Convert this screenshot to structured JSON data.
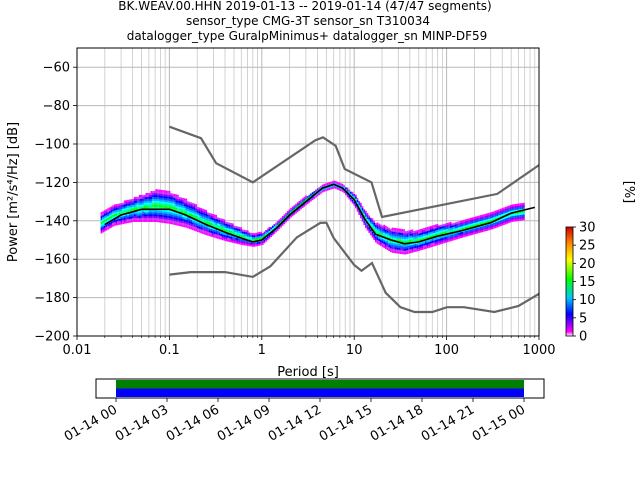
{
  "title_lines": [
    "BK.WEAV.00.HHN   2019-01-13 -- 2019-01-14  (47/47 segments)",
    "sensor_type CMG-3T sensor_sn T310034",
    "datalogger_type GuralpMinimus+ datalogger_sn MINP-DF59"
  ],
  "chart_data": {
    "type": "heatmap",
    "x_scale": "log",
    "xlim": [
      0.01,
      1000
    ],
    "ylim": [
      -200,
      -50
    ],
    "xlabel": "Period [s]",
    "ylabel": "Power [m²/s⁴/Hz] [dB]",
    "x_ticks": [
      0.01,
      0.1,
      1,
      10,
      100,
      1000
    ],
    "x_tick_labels": [
      "0.01",
      "0.1",
      "1",
      "10",
      "100",
      "1000"
    ],
    "y_ticks": [
      -200,
      -180,
      -160,
      -140,
      -120,
      -100,
      -80,
      -60
    ],
    "y_tick_labels": [
      "−200",
      "−180",
      "−160",
      "−140",
      "−120",
      "−100",
      "−80",
      "−60"
    ],
    "grid": true,
    "noise_models": [
      {
        "model": "high",
        "points": [
          [
            0.1,
            -91
          ],
          [
            0.22,
            -97
          ],
          [
            0.32,
            -110
          ],
          [
            0.8,
            -120
          ],
          [
            3.8,
            -98
          ],
          [
            4.6,
            -96.5
          ],
          [
            6.3,
            -101
          ],
          [
            7.9,
            -113
          ],
          [
            15.4,
            -120
          ],
          [
            20,
            -138
          ],
          [
            354,
            -126
          ],
          [
            1000,
            -111
          ]
        ]
      },
      {
        "model": "low",
        "points": [
          [
            0.1,
            -168
          ],
          [
            0.17,
            -166.7
          ],
          [
            0.4,
            -166.7
          ],
          [
            0.8,
            -169.2
          ],
          [
            1.24,
            -163.7
          ],
          [
            2.4,
            -148.6
          ],
          [
            4.3,
            -141.1
          ],
          [
            5,
            -141
          ],
          [
            6,
            -149
          ],
          [
            10,
            -163
          ],
          [
            12,
            -166
          ],
          [
            15.6,
            -162
          ],
          [
            21.9,
            -177.5
          ],
          [
            31.6,
            -185
          ],
          [
            45,
            -187.5
          ],
          [
            70,
            -187.5
          ],
          [
            101,
            -185
          ],
          [
            154,
            -185
          ],
          [
            328,
            -187.5
          ],
          [
            600,
            -184.4
          ],
          [
            1000,
            -178
          ]
        ]
      }
    ],
    "mode_curve": [
      [
        0.02,
        -142
      ],
      [
        0.03,
        -137
      ],
      [
        0.05,
        -134
      ],
      [
        0.1,
        -134
      ],
      [
        0.15,
        -137
      ],
      [
        0.25,
        -142
      ],
      [
        0.4,
        -146
      ],
      [
        0.6,
        -149
      ],
      [
        0.8,
        -151
      ],
      [
        1,
        -150
      ],
      [
        1.5,
        -143
      ],
      [
        2,
        -137
      ],
      [
        3,
        -130
      ],
      [
        4.5,
        -123
      ],
      [
        6,
        -121
      ],
      [
        7.5,
        -123
      ],
      [
        10,
        -129
      ],
      [
        13,
        -139
      ],
      [
        17,
        -147
      ],
      [
        25,
        -150
      ],
      [
        35,
        -152
      ],
      [
        50,
        -151
      ],
      [
        80,
        -148
      ],
      [
        150,
        -145
      ],
      [
        300,
        -141
      ],
      [
        500,
        -136
      ],
      [
        900,
        -133
      ]
    ],
    "psd_band": {
      "points": [
        [
          0.018,
          -141,
          5
        ],
        [
          0.025,
          -137,
          5
        ],
        [
          0.04,
          -134,
          6
        ],
        [
          0.07,
          -132,
          8
        ],
        [
          0.1,
          -133,
          8
        ],
        [
          0.15,
          -136,
          7
        ],
        [
          0.25,
          -141,
          6
        ],
        [
          0.4,
          -145,
          5
        ],
        [
          0.6,
          -148,
          4
        ],
        [
          0.8,
          -150,
          3
        ],
        [
          1,
          -149,
          3
        ],
        [
          1.5,
          -142,
          2
        ],
        [
          2,
          -136,
          2
        ],
        [
          3,
          -129,
          2
        ],
        [
          4.5,
          -123,
          1.5
        ],
        [
          6,
          -121,
          1.5
        ],
        [
          7.5,
          -123,
          1.5
        ],
        [
          10,
          -129,
          3
        ],
        [
          13,
          -139,
          4
        ],
        [
          17,
          -146,
          5
        ],
        [
          25,
          -150,
          6
        ],
        [
          35,
          -151,
          6
        ],
        [
          50,
          -150,
          5
        ],
        [
          80,
          -147,
          5
        ],
        [
          150,
          -144,
          4
        ],
        [
          300,
          -140,
          4
        ],
        [
          500,
          -136,
          4
        ],
        [
          700,
          -135,
          4
        ]
      ]
    },
    "colorbar": {
      "label": "[%]",
      "range": [
        0,
        30
      ],
      "ticks": [
        0,
        5,
        10,
        15,
        20,
        25,
        30
      ],
      "tick_labels": [
        "0",
        "5",
        "10",
        "15",
        "20",
        "25",
        "30"
      ]
    },
    "coverage": {
      "ticks": [
        "01-14 00",
        "01-14 03",
        "01-14 06",
        "01-14 09",
        "01-14 12",
        "01-14 15",
        "01-14 18",
        "01-14 21",
        "01-15 00"
      ],
      "bars": [
        {
          "color": "#008000",
          "start_hour": 0,
          "end_hour": 24
        },
        {
          "color": "#0000ff",
          "start_hour": 0,
          "end_hour": 24
        }
      ]
    }
  }
}
